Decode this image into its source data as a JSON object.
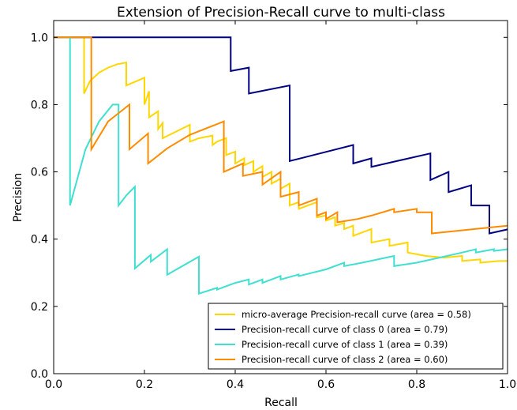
{
  "chart_data": {
    "type": "line",
    "title": "Extension of Precision-Recall curve to multi-class",
    "xlabel": "Recall",
    "ylabel": "Precision",
    "xlim": [
      0.0,
      1.0
    ],
    "ylim": [
      0.0,
      1.05
    ],
    "xticks": [
      "0.0",
      "0.2",
      "0.4",
      "0.6",
      "0.8",
      "1.0"
    ],
    "yticks": [
      "0.0",
      "0.2",
      "0.4",
      "0.6",
      "0.8",
      "1.0"
    ],
    "xtick_values": [
      0.0,
      0.2,
      0.4,
      0.6,
      0.8,
      1.0
    ],
    "ytick_values": [
      0.0,
      0.2,
      0.4,
      0.6,
      0.8,
      1.0
    ],
    "grid": false,
    "legend_position": "lower-right",
    "series": [
      {
        "name": "micro-average Precision-recall curve (area = 0.58)",
        "color": "#FFD700",
        "x": [
          0.0,
          0.0,
          0.067,
          0.067,
          0.08,
          0.1,
          0.12,
          0.14,
          0.16,
          0.16,
          0.2,
          0.2,
          0.21,
          0.21,
          0.23,
          0.23,
          0.24,
          0.24,
          0.27,
          0.3,
          0.3,
          0.32,
          0.35,
          0.35,
          0.36,
          0.38,
          0.38,
          0.4,
          0.4,
          0.42,
          0.42,
          0.44,
          0.44,
          0.46,
          0.46,
          0.48,
          0.48,
          0.5,
          0.5,
          0.52,
          0.52,
          0.54,
          0.54,
          0.56,
          0.58,
          0.58,
          0.6,
          0.6,
          0.62,
          0.62,
          0.64,
          0.64,
          0.66,
          0.66,
          0.68,
          0.7,
          0.7,
          0.72,
          0.74,
          0.74,
          0.76,
          0.78,
          0.78,
          0.82,
          0.86,
          0.9,
          0.9,
          0.94,
          0.94,
          0.98,
          0.98,
          1.0
        ],
        "y": [
          1.0,
          1.0,
          1.0,
          0.833,
          0.87,
          0.895,
          0.91,
          0.92,
          0.925,
          0.857,
          0.88,
          0.8,
          0.84,
          0.762,
          0.78,
          0.727,
          0.745,
          0.7,
          0.72,
          0.74,
          0.69,
          0.7,
          0.708,
          0.68,
          0.69,
          0.7,
          0.65,
          0.66,
          0.625,
          0.64,
          0.62,
          0.632,
          0.6,
          0.617,
          0.585,
          0.6,
          0.565,
          0.58,
          0.55,
          0.565,
          0.5,
          0.51,
          0.49,
          0.5,
          0.51,
          0.465,
          0.47,
          0.455,
          0.465,
          0.44,
          0.448,
          0.43,
          0.44,
          0.41,
          0.42,
          0.43,
          0.39,
          0.395,
          0.4,
          0.38,
          0.385,
          0.39,
          0.36,
          0.35,
          0.345,
          0.35,
          0.335,
          0.34,
          0.33,
          0.335,
          0.335,
          0.335
        ]
      },
      {
        "name": "Precision-recall curve of class 0 (area = 0.79)",
        "color": "#000080",
        "x": [
          0.0,
          0.39,
          0.39,
          0.43,
          0.43,
          0.52,
          0.52,
          0.66,
          0.66,
          0.7,
          0.7,
          0.83,
          0.83,
          0.87,
          0.87,
          0.92,
          0.92,
          0.96,
          0.96,
          1.0
        ],
        "y": [
          1.0,
          1.0,
          0.9,
          0.91,
          0.833,
          0.857,
          0.632,
          0.68,
          0.625,
          0.64,
          0.615,
          0.655,
          0.576,
          0.6,
          0.54,
          0.56,
          0.5,
          0.5,
          0.417,
          0.429
        ]
      },
      {
        "name": "Precision-recall curve of class 1 (area = 0.39)",
        "color": "#40E0D0",
        "x": [
          0.0,
          0.036,
          0.036,
          0.07,
          0.1,
          0.13,
          0.143,
          0.143,
          0.16,
          0.179,
          0.179,
          0.214,
          0.214,
          0.25,
          0.25,
          0.32,
          0.32,
          0.36,
          0.36,
          0.4,
          0.43,
          0.43,
          0.46,
          0.46,
          0.5,
          0.5,
          0.54,
          0.54,
          0.6,
          0.64,
          0.64,
          0.68,
          0.75,
          0.75,
          0.8,
          0.85,
          0.9,
          0.93,
          0.93,
          0.97,
          0.97,
          1.0
        ],
        "y": [
          1.0,
          1.0,
          0.5,
          0.667,
          0.75,
          0.8,
          0.8,
          0.5,
          0.53,
          0.556,
          0.313,
          0.353,
          0.333,
          0.37,
          0.294,
          0.348,
          0.238,
          0.255,
          0.25,
          0.27,
          0.28,
          0.265,
          0.28,
          0.27,
          0.29,
          0.28,
          0.295,
          0.29,
          0.31,
          0.33,
          0.32,
          0.33,
          0.35,
          0.32,
          0.33,
          0.345,
          0.36,
          0.37,
          0.36,
          0.37,
          0.365,
          0.37
        ]
      },
      {
        "name": "Precision-recall curve of class 2 (area = 0.60)",
        "color": "#FF8C00",
        "x": [
          0.0,
          0.083,
          0.083,
          0.12,
          0.167,
          0.167,
          0.208,
          0.208,
          0.25,
          0.3,
          0.375,
          0.375,
          0.417,
          0.417,
          0.46,
          0.46,
          0.5,
          0.5,
          0.54,
          0.54,
          0.58,
          0.58,
          0.6,
          0.6,
          0.625,
          0.625,
          0.67,
          0.7,
          0.75,
          0.75,
          0.8,
          0.8,
          0.833,
          0.833,
          1.0
        ],
        "y": [
          1.0,
          1.0,
          0.667,
          0.75,
          0.8,
          0.667,
          0.714,
          0.625,
          0.67,
          0.71,
          0.75,
          0.6,
          0.625,
          0.588,
          0.6,
          0.562,
          0.6,
          0.526,
          0.54,
          0.5,
          0.52,
          0.47,
          0.48,
          0.46,
          0.48,
          0.45,
          0.46,
          0.47,
          0.49,
          0.48,
          0.49,
          0.48,
          0.48,
          0.417,
          0.44
        ]
      }
    ]
  }
}
